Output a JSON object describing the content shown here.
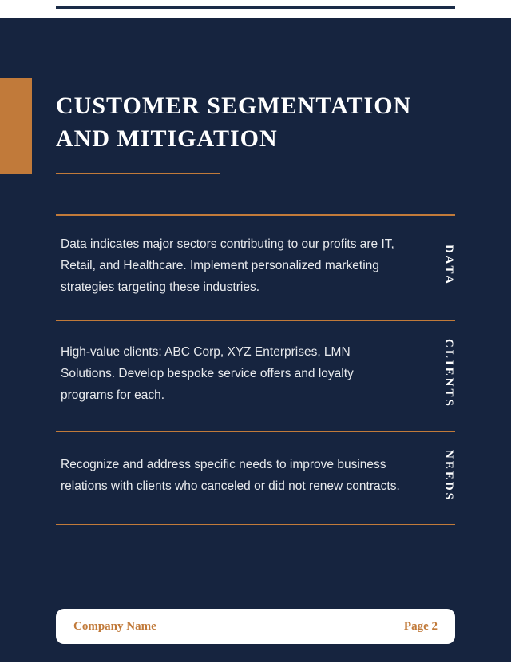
{
  "colors": {
    "page_bg": "#16243f",
    "accent": "#c17a3a",
    "text_light": "#e8eaed",
    "white": "#ffffff",
    "top_rule": "#1a2b47"
  },
  "title": "CUSTOMER SEGMENTATION AND MITIGATION",
  "sections": [
    {
      "label": "DATA",
      "body": "Data indicates major sectors contributing to our profits are IT, Retail, and Healthcare. Implement personalized marketing strategies targeting these industries."
    },
    {
      "label": "CLIENTS",
      "body": "High-value clients: ABC Corp, XYZ Enterprises, LMN Solutions. Develop bespoke service offers and loyalty programs for each."
    },
    {
      "label": "NEEDS",
      "body": "Recognize and address specific needs to improve business relations with clients who canceled or did not renew contracts."
    }
  ],
  "footer": {
    "company": "Company Name",
    "page": "Page 2"
  }
}
